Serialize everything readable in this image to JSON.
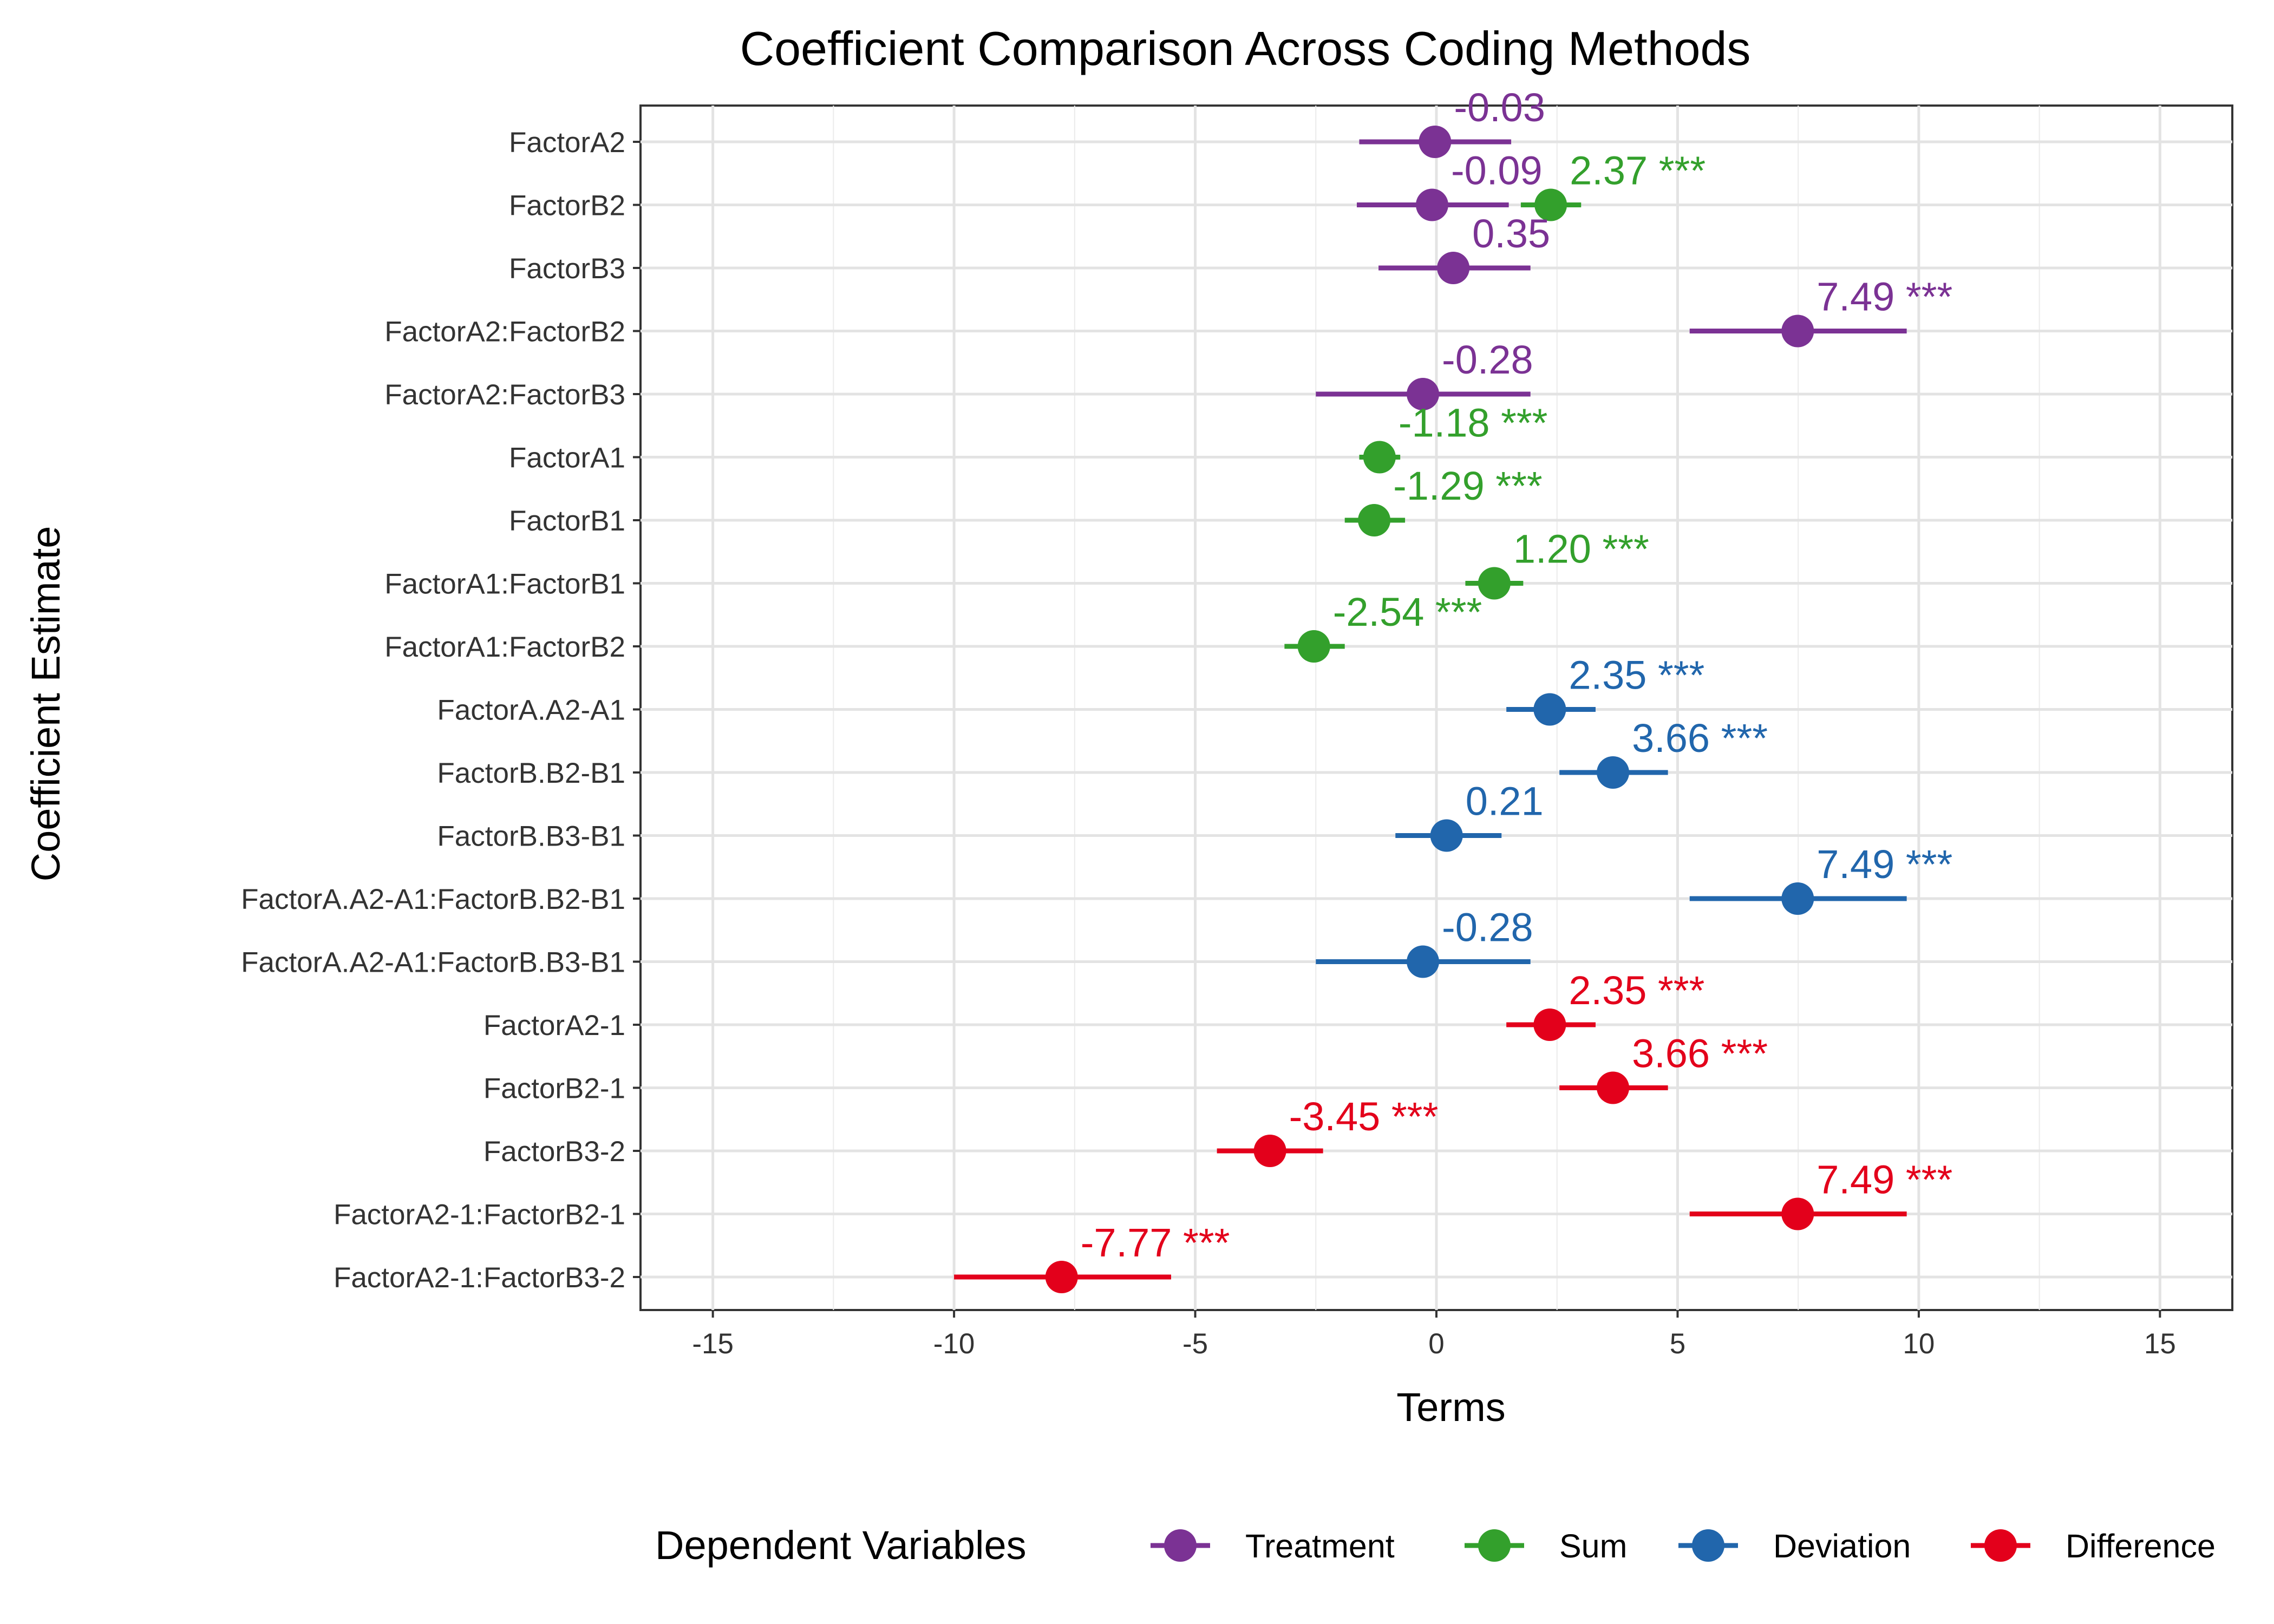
{
  "chart_data": {
    "type": "scatter",
    "title": "Coefficient Comparison Across Coding Methods",
    "xlabel": "Terms",
    "ylabel": "Coefficient Estimate",
    "xlim": [
      -16.5,
      16.5
    ],
    "x_ticks": [
      -15,
      -10,
      -5,
      0,
      5,
      10,
      15
    ],
    "x_tick_labels": [
      "-15",
      "-10",
      "-5",
      "0",
      "5",
      "10",
      "15"
    ],
    "grid": true,
    "legend_position": "bottom",
    "legend_title": "Dependent Variables",
    "categories": [
      "FactorA2",
      "FactorB2",
      "FactorB3",
      "FactorA2:FactorB2",
      "FactorA2:FactorB3",
      "FactorA1",
      "FactorB1",
      "FactorA1:FactorB1",
      "FactorA1:FactorB2",
      "FactorA.A2-A1",
      "FactorB.B2-B1",
      "FactorB.B3-B1",
      "FactorA.A2-A1:FactorB.B2-B1",
      "FactorA.A2-A1:FactorB.B3-B1",
      "FactorA2-1",
      "FactorB2-1",
      "FactorB3-2",
      "FactorA2-1:FactorB2-1",
      "FactorA2-1:FactorB3-2"
    ],
    "series": [
      {
        "name": "Treatment",
        "color": "#7b3294",
        "points": [
          {
            "term": "FactorA2",
            "estimate": -0.03,
            "lower": -1.6,
            "upper": 1.55,
            "label": "-0.03"
          },
          {
            "term": "FactorB2",
            "estimate": -0.09,
            "lower": -1.65,
            "upper": 1.5,
            "label": "-0.09"
          },
          {
            "term": "FactorB3",
            "estimate": 0.35,
            "lower": -1.2,
            "upper": 1.95,
            "label": "0.35"
          },
          {
            "term": "FactorA2:FactorB2",
            "estimate": 7.49,
            "lower": 5.25,
            "upper": 9.75,
            "label": "7.49 ***"
          },
          {
            "term": "FactorA2:FactorB3",
            "estimate": -0.28,
            "lower": -2.5,
            "upper": 1.95,
            "label": "-0.28"
          }
        ]
      },
      {
        "name": "Sum",
        "color": "#33a02c",
        "points": [
          {
            "term": "FactorB2",
            "estimate": 2.37,
            "lower": 1.75,
            "upper": 3.0,
            "label": "2.37 ***"
          },
          {
            "term": "FactorA1",
            "estimate": -1.18,
            "lower": -1.6,
            "upper": -0.75,
            "label": "-1.18 ***"
          },
          {
            "term": "FactorB1",
            "estimate": -1.29,
            "lower": -1.9,
            "upper": -0.65,
            "label": "-1.29 ***"
          },
          {
            "term": "FactorA1:FactorB1",
            "estimate": 1.2,
            "lower": 0.6,
            "upper": 1.8,
            "label": "1.20 ***"
          },
          {
            "term": "FactorA1:FactorB2",
            "estimate": -2.54,
            "lower": -3.15,
            "upper": -1.9,
            "label": "-2.54 ***"
          }
        ]
      },
      {
        "name": "Deviation",
        "color": "#2166ac",
        "points": [
          {
            "term": "FactorA.A2-A1",
            "estimate": 2.35,
            "lower": 1.45,
            "upper": 3.3,
            "label": "2.35 ***"
          },
          {
            "term": "FactorB.B2-B1",
            "estimate": 3.66,
            "lower": 2.55,
            "upper": 4.8,
            "label": "3.66 ***"
          },
          {
            "term": "FactorB.B3-B1",
            "estimate": 0.21,
            "lower": -0.85,
            "upper": 1.35,
            "label": "0.21"
          },
          {
            "term": "FactorA.A2-A1:FactorB.B2-B1",
            "estimate": 7.49,
            "lower": 5.25,
            "upper": 9.75,
            "label": "7.49 ***"
          },
          {
            "term": "FactorA.A2-A1:FactorB.B3-B1",
            "estimate": -0.28,
            "lower": -2.5,
            "upper": 1.95,
            "label": "-0.28"
          }
        ]
      },
      {
        "name": "Difference",
        "color": "#e3001b",
        "points": [
          {
            "term": "FactorA2-1",
            "estimate": 2.35,
            "lower": 1.45,
            "upper": 3.3,
            "label": "2.35 ***"
          },
          {
            "term": "FactorB2-1",
            "estimate": 3.66,
            "lower": 2.55,
            "upper": 4.8,
            "label": "3.66 ***"
          },
          {
            "term": "FactorB3-2",
            "estimate": -3.45,
            "lower": -4.55,
            "upper": -2.35,
            "label": "-3.45 ***"
          },
          {
            "term": "FactorA2-1:FactorB2-1",
            "estimate": 7.49,
            "lower": 5.25,
            "upper": 9.75,
            "label": "7.49 ***"
          },
          {
            "term": "FactorA2-1:FactorB3-2",
            "estimate": -7.77,
            "lower": -10.0,
            "upper": -5.5,
            "label": "-7.77 ***"
          }
        ]
      }
    ]
  }
}
